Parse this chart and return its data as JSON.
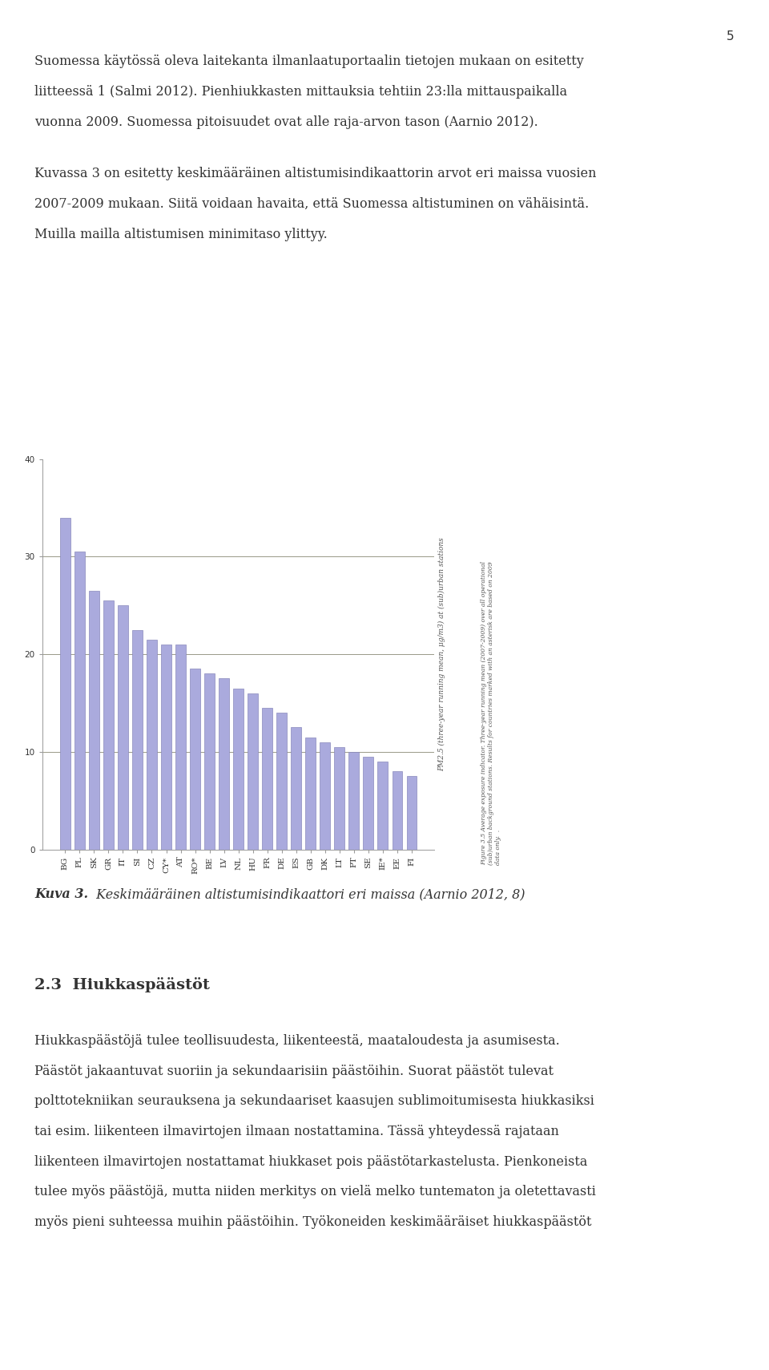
{
  "categories": [
    "BG",
    "PL",
    "SK",
    "GR",
    "IT",
    "SI",
    "CZ",
    "CY*",
    "AT",
    "RO*",
    "BE",
    "LV",
    "NL",
    "HU",
    "FR",
    "DE",
    "ES",
    "GB",
    "DK",
    "LT",
    "PT",
    "SE",
    "IE*",
    "EE",
    "FI"
  ],
  "values": [
    34.0,
    30.5,
    26.5,
    25.5,
    25.0,
    22.5,
    21.5,
    21.0,
    21.0,
    18.5,
    18.0,
    17.5,
    16.5,
    16.0,
    14.5,
    14.0,
    12.5,
    11.5,
    11.0,
    10.5,
    10.0,
    9.5,
    9.0,
    8.0,
    7.5
  ],
  "bar_color": "#aaaadd",
  "bar_edge_color": "#8888bb",
  "ylim": [
    0,
    40
  ],
  "yticks": [
    0,
    10,
    20,
    30,
    40
  ],
  "hline_values": [
    10,
    20,
    30
  ],
  "hline_color": "#999988",
  "hline_lw": 0.7,
  "bar_width": 0.7,
  "background_color": "#ffffff",
  "text_color": "#333333",
  "tick_fontsize": 7.5,
  "axis_linecolor": "#999999",
  "ylabel_text": "PM2.5 (three-year running mean, μg/m3) at (sub)urban stations",
  "fig_caption_line1": "Figure 3.5 Average exposure indicator. Three-year running mean (2007-2009) over all operational",
  "fig_caption_line2": "(sub)urban background stations. Results for countries marked with an asterisk are based on 2009",
  "fig_caption_line3": "data only.  .",
  "page_number": "5",
  "para1_lines": [
    "Suomessa käytössä oleva laitekanta ilmanlaatuportaalin tietojen mukaan on esitetty",
    "liitteessä 1 (Salmi 2012). Pienhiukkasten mittauksia tehtiin 23:lla mittauspaikalla",
    "vuonna 2009. Suomessa pitoisuudet ovat alle raja-arvon tason (Aarnio 2012)."
  ],
  "para2_lines": [
    "Kuvassa 3 on esitetty keskimääräinen altistumisindikaattorin arvot eri maissa vuosien",
    "2007-2009 mukaan. Siitä voidaan havaita, että Suomessa altistuminen on vähäisintä.",
    "Muilla mailla altistumisen minimitaso ylittyy."
  ],
  "caption_bold": "Kuva 3.",
  "caption_rest": " Keskimääräinen altistumisindikaattori eri maissa (Aarnio 2012, 8)",
  "section_heading": "2.3  Hiukkasпäästöt",
  "section_heading2": "2.3  Hiukkasпäästöt",
  "para3_lines": [
    "Hiukkasпäästöjä tulee teollisuudesta, liikenteestä, maataloudesta ja asumisesta.",
    "Пäästöt jakaantuvat suoriin ja sekundaarisiin пäästöihin. Suorat пäästöt tulevat",
    "polttotekniikan seurauksena ja sekundaariset kaasujen sublimoitumisesta hiukkasiksi",
    "tai esim. liikenteen ilmavirtojen ilmaan nostattamina. Tässä yhteydessä rajataan",
    "liikenteen ilmavirtojen nostattamat hiukkaset pois пäästötarkastelusta. Pienkoneista",
    "tulee myös пäästöjä, mutta niiden merkitys on vielä melko tuntematon ja oletettavasti",
    "myös pieni suhteessa muihin пäästöihin. Työkoneiden keskimääräiset hiukkasпäästöt"
  ]
}
